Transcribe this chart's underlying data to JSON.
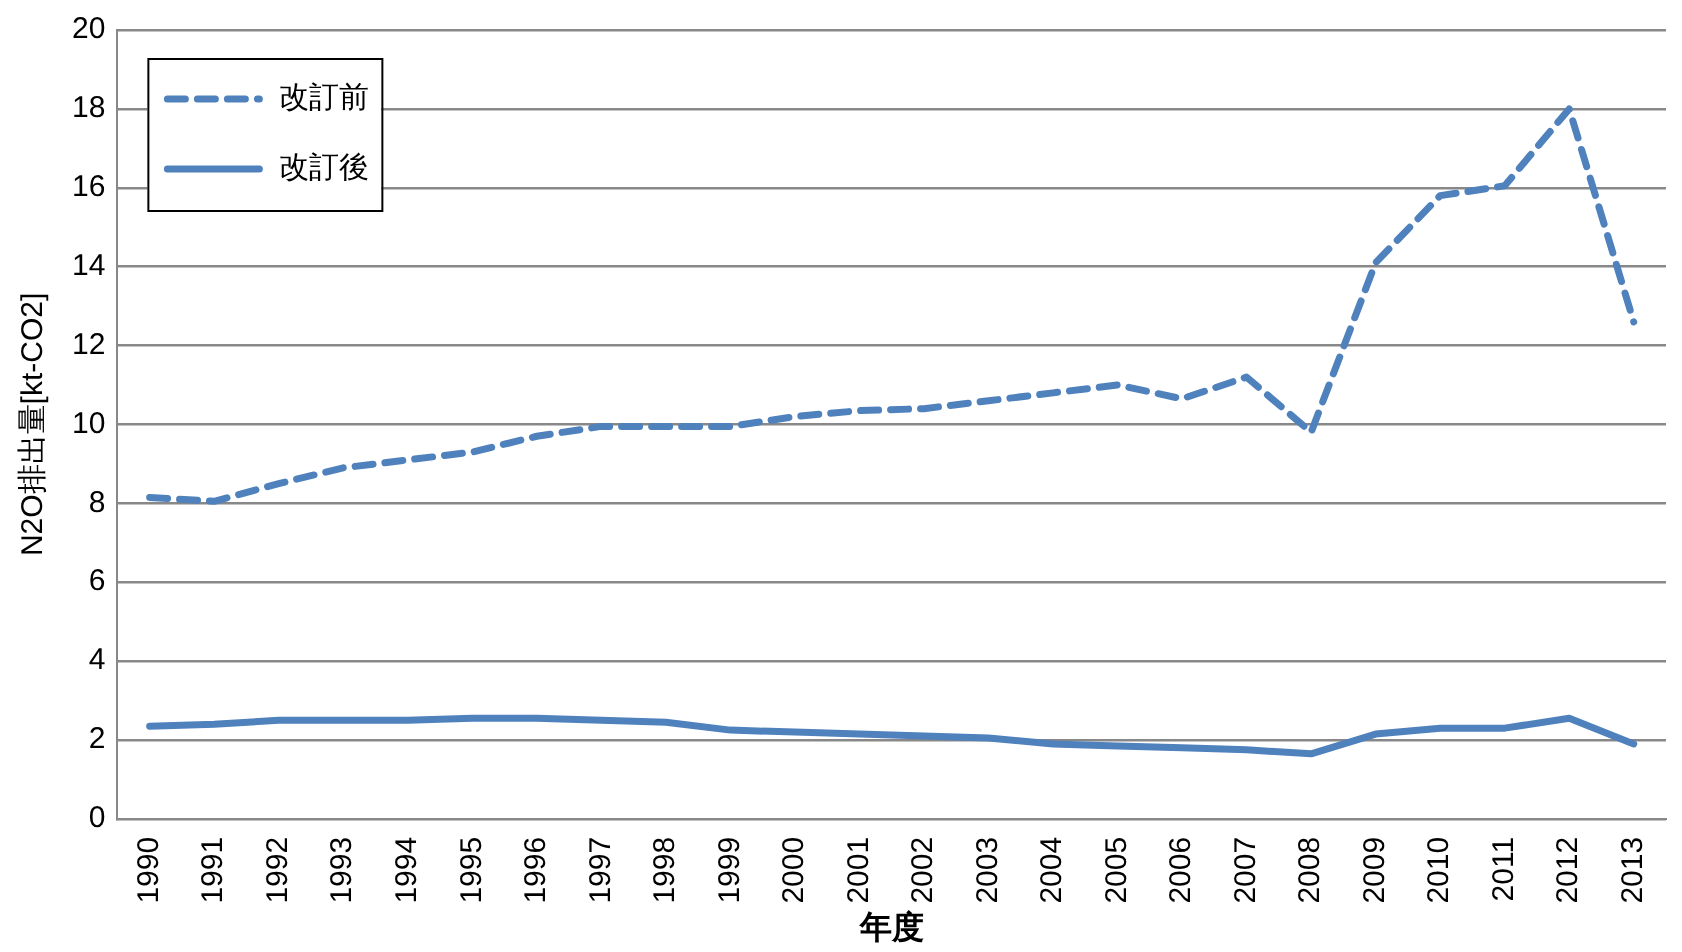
{
  "chart_data": {
    "type": "line",
    "xlabel": "年度",
    "ylabel": "N2O排出量[kt-CO2]",
    "categories": [
      "1990",
      "1991",
      "1992",
      "1993",
      "1994",
      "1995",
      "1996",
      "1997",
      "1998",
      "1999",
      "2000",
      "2001",
      "2002",
      "2003",
      "2004",
      "2005",
      "2006",
      "2007",
      "2008",
      "2009",
      "2010",
      "2011",
      "2012",
      "2013"
    ],
    "series": [
      {
        "name": "改訂前",
        "color": "#4f81bd",
        "line_style": "dashed",
        "values": [
          8.15,
          8.05,
          8.5,
          8.9,
          9.1,
          9.3,
          9.7,
          9.95,
          9.95,
          9.95,
          10.2,
          10.35,
          10.4,
          10.6,
          10.8,
          11.0,
          10.65,
          11.2,
          9.8,
          14.1,
          15.8,
          16.05,
          18.0,
          12.6
        ]
      },
      {
        "name": "改訂後",
        "color": "#4f81bd",
        "line_style": "solid",
        "values": [
          2.35,
          2.4,
          2.5,
          2.5,
          2.5,
          2.55,
          2.55,
          2.5,
          2.45,
          2.25,
          2.2,
          2.15,
          2.1,
          2.05,
          1.9,
          1.85,
          1.8,
          1.75,
          1.65,
          2.15,
          2.3,
          2.3,
          2.55,
          1.9
        ]
      }
    ],
    "ylim": [
      0,
      20
    ],
    "yticks": [
      0,
      2,
      4,
      6,
      8,
      10,
      12,
      14,
      16,
      18,
      20
    ],
    "grid": "y",
    "legend": "top left",
    "marker": "none"
  }
}
